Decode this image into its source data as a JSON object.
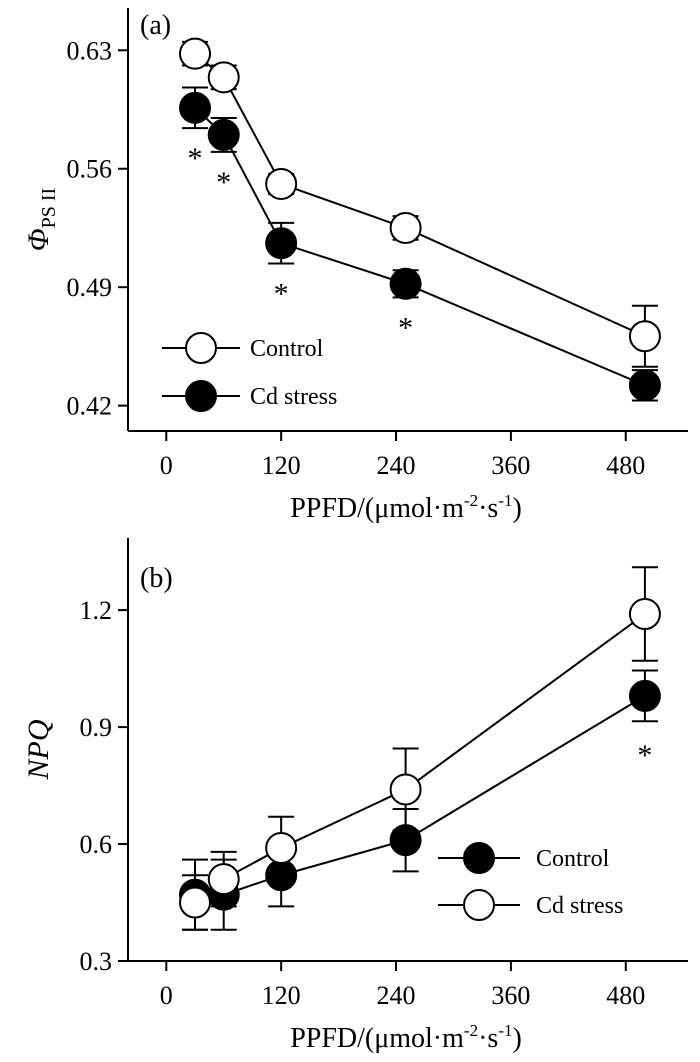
{
  "chart_data": [
    {
      "type": "line",
      "panel_label": "(a)",
      "ylabel": "Φ",
      "ylabel_subscript": "PS II",
      "xlabel": "PPFD/(μmol·m",
      "xlabel_sup1": "-2",
      "xlabel_mid": "·s",
      "xlabel_sup2": "-1",
      "xlabel_end": ")",
      "xticks": [
        "0",
        "120",
        "240",
        "360",
        "480"
      ],
      "yticks": [
        "0.42",
        "0.49",
        "0.56",
        "0.63"
      ],
      "ylim": [
        0.405,
        0.655
      ],
      "xlim": [
        -40,
        545
      ],
      "grid": false,
      "legend_position": "bottom-left",
      "series": [
        {
          "name": "Control",
          "marker": "open-circle",
          "x": [
            30,
            60,
            120,
            250,
            500
          ],
          "y": [
            0.628,
            0.614,
            0.551,
            0.525,
            0.461
          ],
          "err": [
            0.007,
            0.007,
            0.006,
            0.007,
            0.018
          ]
        },
        {
          "name": "Cd stress",
          "marker": "filled-circle",
          "x": [
            30,
            60,
            120,
            250,
            500
          ],
          "y": [
            0.596,
            0.58,
            0.516,
            0.492,
            0.432
          ],
          "err": [
            0.012,
            0.01,
            0.012,
            0.008,
            0.009
          ]
        }
      ],
      "annotations": [
        {
          "text": "*",
          "x": 30
        },
        {
          "text": "*",
          "x": 60
        },
        {
          "text": "*",
          "x": 120
        },
        {
          "text": "*",
          "x": 250
        }
      ]
    },
    {
      "type": "line",
      "panel_label": "(b)",
      "ylabel": "NPQ",
      "xlabel": "PPFD/(μmol·m",
      "xlabel_sup1": "-2",
      "xlabel_mid": "·s",
      "xlabel_sup2": "-1",
      "xlabel_end": ")",
      "xticks": [
        "0",
        "120",
        "240",
        "360",
        "480"
      ],
      "yticks": [
        "0.3",
        "0.6",
        "0.9",
        "1.2"
      ],
      "ylim": [
        0.3,
        1.385
      ],
      "xlim": [
        -40,
        545
      ],
      "grid": false,
      "legend_position": "bottom-right",
      "series": [
        {
          "name": "Control",
          "marker": "filled-circle",
          "x": [
            30,
            60,
            120,
            250,
            500
          ],
          "y": [
            0.47,
            0.47,
            0.52,
            0.61,
            0.98
          ],
          "err": [
            0.09,
            0.09,
            0.08,
            0.08,
            0.065
          ]
        },
        {
          "name": "Cd stress",
          "marker": "open-circle",
          "x": [
            30,
            60,
            120,
            250,
            500
          ],
          "y": [
            0.45,
            0.51,
            0.59,
            0.74,
            1.19
          ],
          "err": [
            0.07,
            0.07,
            0.08,
            0.105,
            0.12
          ]
        }
      ],
      "annotations": [
        {
          "text": "*",
          "x": 500
        }
      ]
    }
  ]
}
